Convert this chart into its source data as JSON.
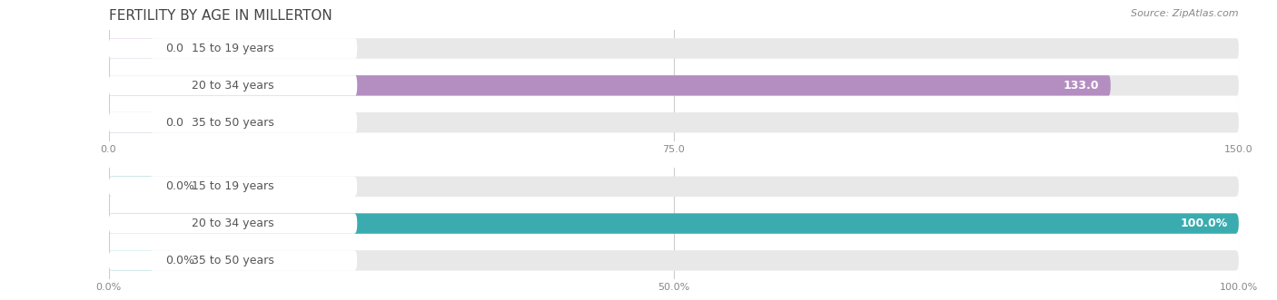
{
  "title": "FERTILITY BY AGE IN MILLERTON",
  "source": "Source: ZipAtlas.com",
  "top_chart": {
    "categories": [
      "15 to 19 years",
      "20 to 34 years",
      "35 to 50 years"
    ],
    "values": [
      0.0,
      133.0,
      0.0
    ],
    "xlim": [
      0,
      150
    ],
    "xticks": [
      0.0,
      75.0,
      150.0
    ],
    "xtick_labels": [
      "0.0",
      "75.0",
      "150.0"
    ],
    "bar_color": "#b48ec0",
    "bar_bg_color": "#e8e8e8"
  },
  "bottom_chart": {
    "categories": [
      "15 to 19 years",
      "20 to 34 years",
      "35 to 50 years"
    ],
    "values": [
      0.0,
      100.0,
      0.0
    ],
    "xlim": [
      0,
      100
    ],
    "xticks": [
      0.0,
      50.0,
      100.0
    ],
    "xtick_labels": [
      "0.0%",
      "50.0%",
      "100.0%"
    ],
    "bar_color": "#3aacb0",
    "bar_bg_color": "#e8e8e8"
  },
  "fig_bg_color": "#ffffff",
  "bar_height": 0.55,
  "label_color": "#555555",
  "value_color_inside": "#ffffff",
  "value_color_outside": "#555555",
  "title_fontsize": 11,
  "label_fontsize": 9,
  "value_fontsize": 9,
  "tick_fontsize": 8,
  "source_fontsize": 8,
  "title_color": "#444444"
}
